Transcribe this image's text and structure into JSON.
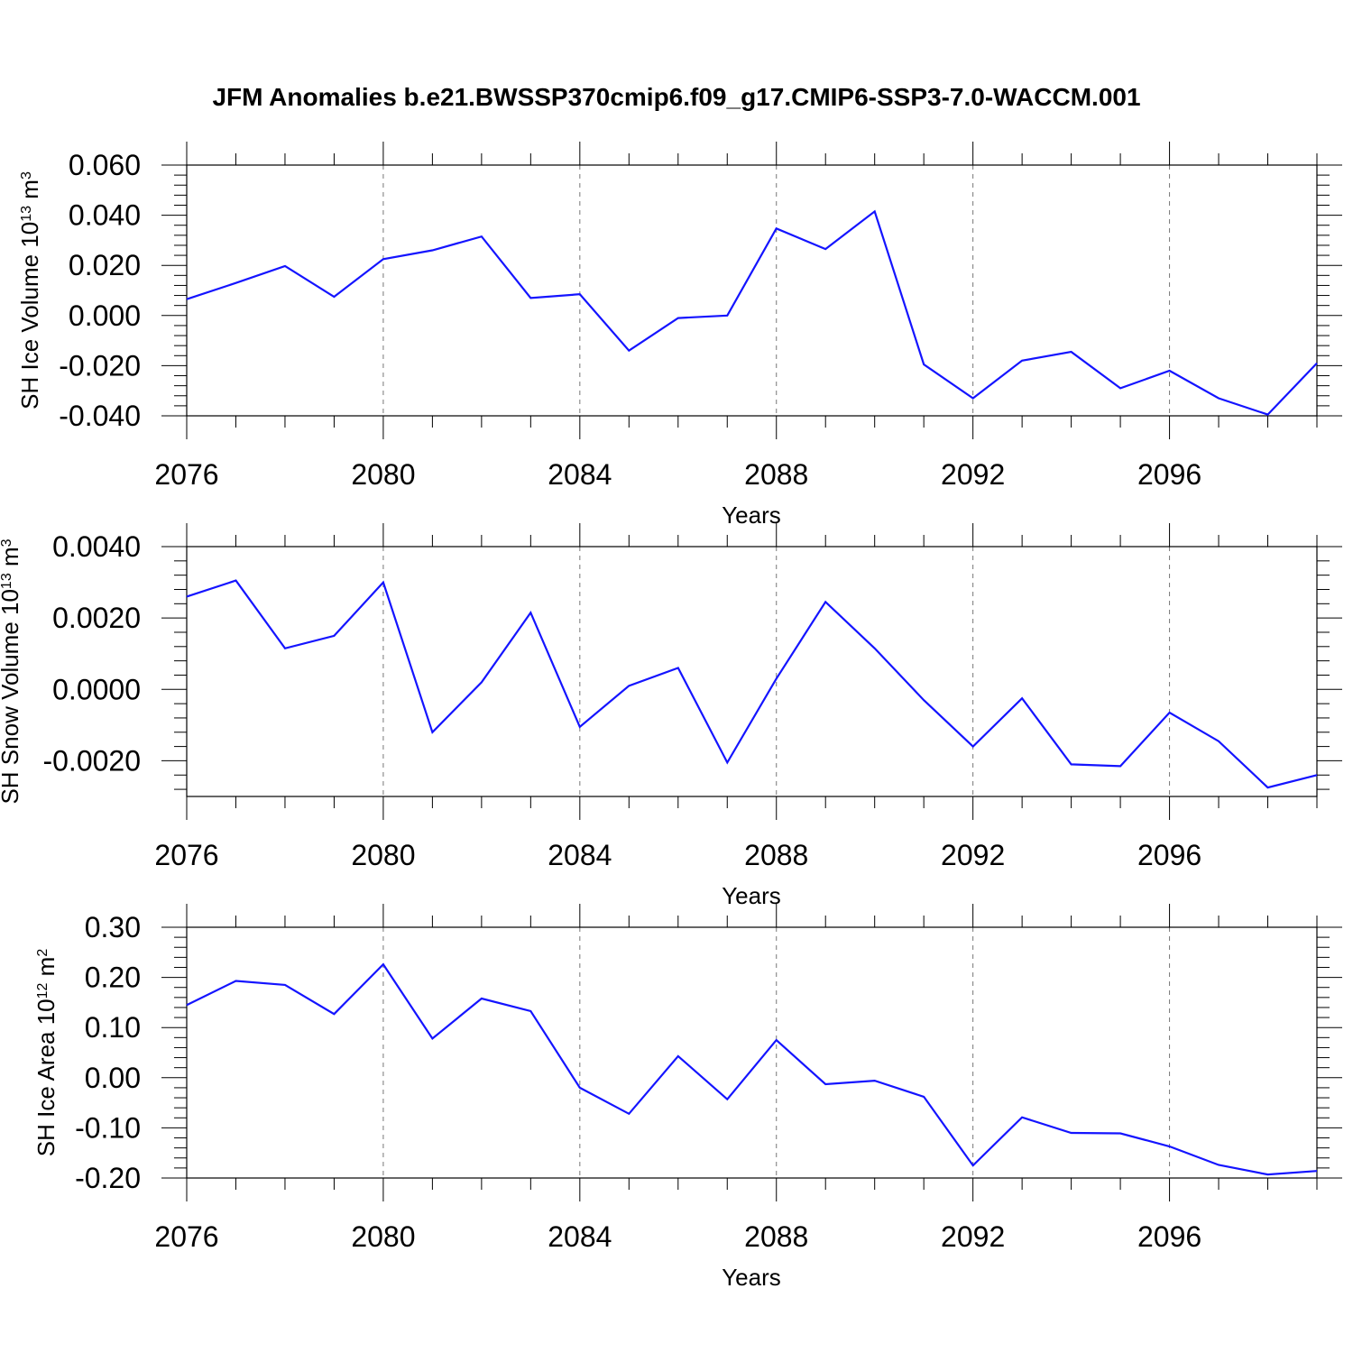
{
  "title": "JFM Anomalies b.e21.BWSSP370cmip6.f09_g17.CMIP6-SSP3-7.0-WACCM.001",
  "line_color": "#1414ff",
  "chart_data": [
    {
      "type": "line",
      "ylabel_main": "SH Ice Volume 10",
      "ylabel_exp": "13",
      "ylabel_unit": "m",
      "ylabel_unit_exp": "3",
      "xlabel": "Years",
      "xlim": [
        2076,
        2099
      ],
      "ylim": [
        -0.04,
        0.06
      ],
      "xticks": [
        2076,
        2080,
        2084,
        2088,
        2092,
        2096
      ],
      "xtick_labels": [
        "2076",
        "2080",
        "2084",
        "2088",
        "2092",
        "2096"
      ],
      "yticks": [
        -0.04,
        -0.02,
        0.0,
        0.02,
        0.04,
        0.06
      ],
      "ytick_labels": [
        "-0.040",
        "-0.020",
        "0.000",
        "0.020",
        "0.040",
        "0.060"
      ],
      "x": [
        2076,
        2077,
        2078,
        2079,
        2080,
        2081,
        2082,
        2083,
        2084,
        2085,
        2086,
        2087,
        2088,
        2089,
        2090,
        2091,
        2092,
        2093,
        2094,
        2095,
        2096,
        2097,
        2098,
        2099
      ],
      "values": [
        0.0065,
        0.013,
        0.0197,
        0.0075,
        0.0225,
        0.026,
        0.0315,
        0.007,
        0.0085,
        -0.014,
        -0.001,
        0.0,
        0.0347,
        0.0265,
        0.0415,
        -0.0195,
        -0.033,
        -0.018,
        -0.0145,
        -0.029,
        -0.022,
        -0.033,
        -0.0395,
        -0.019
      ]
    },
    {
      "type": "line",
      "ylabel_main": "SH Snow Volume 10",
      "ylabel_exp": "13",
      "ylabel_unit": "m",
      "ylabel_unit_exp": "3",
      "xlabel": "Years",
      "xlim": [
        2076,
        2099
      ],
      "ylim": [
        -0.003,
        0.004
      ],
      "xticks": [
        2076,
        2080,
        2084,
        2088,
        2092,
        2096
      ],
      "xtick_labels": [
        "2076",
        "2080",
        "2084",
        "2088",
        "2092",
        "2096"
      ],
      "yticks": [
        -0.002,
        0.0,
        0.002,
        0.004
      ],
      "ytick_labels": [
        "-0.0020",
        "0.0000",
        "0.0020",
        "0.0040"
      ],
      "x": [
        2076,
        2077,
        2078,
        2079,
        2080,
        2081,
        2082,
        2083,
        2084,
        2085,
        2086,
        2087,
        2088,
        2089,
        2090,
        2091,
        2092,
        2093,
        2094,
        2095,
        2096,
        2097,
        2098,
        2099
      ],
      "values": [
        0.0026,
        0.00305,
        0.00115,
        0.0015,
        0.003,
        -0.0012,
        0.0002,
        0.00215,
        -0.00105,
        0.0001,
        0.0006,
        -0.00205,
        0.0003,
        0.00245,
        0.00115,
        -0.0003,
        -0.0016,
        -0.00025,
        -0.0021,
        -0.00215,
        -0.00065,
        -0.00145,
        -0.00275,
        -0.0024
      ]
    },
    {
      "type": "line",
      "ylabel_main": "SH Ice Area 10",
      "ylabel_exp": "12",
      "ylabel_unit": "m",
      "ylabel_unit_exp": "2",
      "xlabel": "Years",
      "xlim": [
        2076,
        2099
      ],
      "ylim": [
        -0.2,
        0.3
      ],
      "xticks": [
        2076,
        2080,
        2084,
        2088,
        2092,
        2096
      ],
      "xtick_labels": [
        "2076",
        "2080",
        "2084",
        "2088",
        "2092",
        "2096"
      ],
      "yticks": [
        -0.2,
        -0.1,
        0.0,
        0.1,
        0.2,
        0.3
      ],
      "ytick_labels": [
        "-0.20",
        "-0.10",
        "0.00",
        "0.10",
        "0.20",
        "0.30"
      ],
      "x": [
        2076,
        2077,
        2078,
        2079,
        2080,
        2081,
        2082,
        2083,
        2084,
        2085,
        2086,
        2087,
        2088,
        2089,
        2090,
        2091,
        2092,
        2093,
        2094,
        2095,
        2096,
        2097,
        2098,
        2099
      ],
      "values": [
        0.145,
        0.193,
        0.185,
        0.127,
        0.226,
        0.078,
        0.158,
        0.133,
        -0.02,
        -0.072,
        0.043,
        -0.043,
        0.075,
        -0.013,
        -0.006,
        -0.038,
        -0.175,
        -0.079,
        -0.11,
        -0.111,
        -0.137,
        -0.174,
        -0.193,
        -0.186
      ]
    }
  ]
}
